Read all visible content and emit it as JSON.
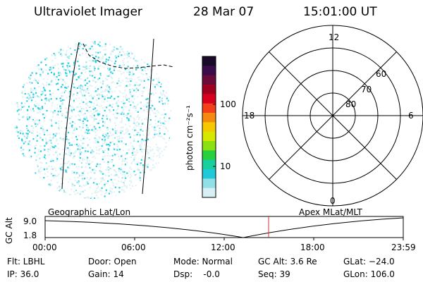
{
  "header": {
    "title": "Ultraviolet Imager",
    "date": "28 Mar 07",
    "time": "15:01:00 UT"
  },
  "colorbar": {
    "unit_label": "photon cm⁻²s⁻¹",
    "ticks": [
      "100",
      "10"
    ],
    "colors": [
      "#1a0a2a",
      "#3b0b4a",
      "#6a0b3a",
      "#a00020",
      "#d8001e",
      "#f2401a",
      "#f68a10",
      "#f6c800",
      "#d6e800",
      "#8ae010",
      "#28d040",
      "#18cfa0",
      "#20c8d8",
      "#90e0e8",
      "#d8f0f4"
    ]
  },
  "polar_plot": {
    "mlt_labels": {
      "top": "12",
      "left": "18",
      "right": "6",
      "bottom": "0"
    },
    "lat_labels": [
      "60",
      "70",
      "80"
    ]
  },
  "projection_labels": {
    "left": "Geographic Lat/Lon",
    "right": "Apex  MLat/MLT"
  },
  "altitude_panel": {
    "axis_label": "GC Alt",
    "y_ticks": [
      "9.0",
      "1.8"
    ],
    "x_ticks": [
      "00:00",
      "06:00",
      "12:00",
      "18:00",
      "23:59"
    ],
    "marker_color": "#d03030"
  },
  "footer": {
    "filter": "Flt: LBHL",
    "ip": "IP: 36.0",
    "door": "Door: Open",
    "gain": "Gain: 14",
    "mode": "Mode: Normal",
    "dsp": "Dsp:    -0.0",
    "gc_alt": "GC Alt: 3.6 Re",
    "seq": "Seq: 39",
    "glat": "GLat: −24.0",
    "glon": "GLon: 106.0"
  }
}
